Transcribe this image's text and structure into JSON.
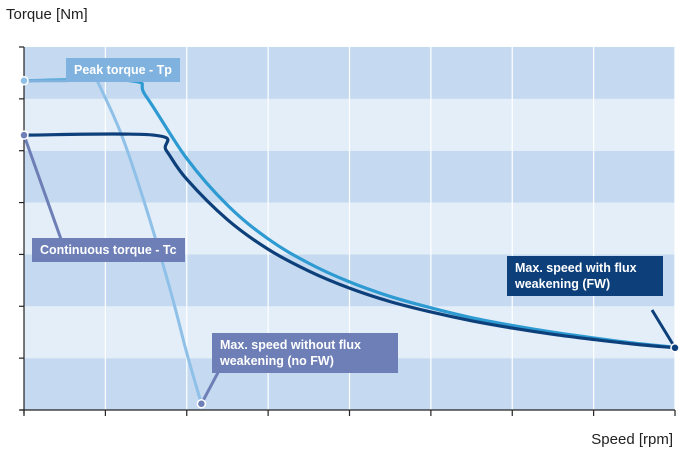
{
  "chart_data": {
    "type": "line",
    "title": "",
    "ylabel": "Torque [Nm]",
    "xlabel": "Speed [rpm]",
    "xlim": [
      0,
      8
    ],
    "ylim": [
      0,
      7
    ],
    "grid": "alternating horizontal bands, vertical gridlines",
    "series": [
      {
        "key": "peak",
        "color": "#2d9ad2",
        "x": [
          0,
          1.3,
          1.5,
          2,
          2.5,
          3,
          3.5,
          4,
          4.5,
          5,
          5.5,
          6,
          6.5,
          7,
          7.5,
          8
        ],
        "y": [
          6.35,
          6.35,
          6.05,
          4.85,
          3.95,
          3.3,
          2.83,
          2.47,
          2.19,
          1.97,
          1.78,
          1.63,
          1.5,
          1.39,
          1.29,
          1.21
        ]
      },
      {
        "key": "continuous",
        "color": "#0d3f7a",
        "x": [
          0,
          1.6,
          1.75,
          2,
          2.5,
          3,
          3.5,
          4,
          4.5,
          5,
          5.5,
          6,
          6.5,
          7,
          7.5,
          8
        ],
        "y": [
          5.3,
          5.3,
          5.0,
          4.45,
          3.67,
          3.1,
          2.68,
          2.35,
          2.09,
          1.89,
          1.72,
          1.58,
          1.46,
          1.36,
          1.27,
          1.2
        ]
      },
      {
        "key": "no_fw",
        "color": "#8fc0e8",
        "x": [
          0.9,
          1.2,
          1.5,
          1.8,
          2.0,
          2.18
        ],
        "y": [
          6.35,
          5.3,
          3.9,
          2.3,
          1.1,
          0.12
        ]
      }
    ],
    "markers": [
      {
        "name": "peak-torque-point",
        "x": 0,
        "y": 6.35,
        "fill": "#8fc0e8"
      },
      {
        "name": "continuous-torque-point",
        "x": 0,
        "y": 5.3,
        "fill": "#6d7fb6"
      },
      {
        "name": "max-speed-no-fw-point",
        "x": 2.18,
        "y": 0.12,
        "fill": "#6d7fb6"
      },
      {
        "name": "max-speed-fw-point",
        "x": 8,
        "y": 1.2,
        "fill": "#0d3f7a"
      }
    ],
    "annotations": {
      "peak": "Peak torque - Tp",
      "continuous": "Continuous torque - Tc",
      "no_fw": "Max. speed without flux weakening (no FW)",
      "fw": "Max. speed with flux weakening (FW)"
    },
    "colors": {
      "band_dark": "#c5daf0",
      "band_light": "#e3eef9",
      "axis": "#222222",
      "callout_peak": "#7fb2de",
      "callout_purple": "#6d7fb6",
      "callout_navy": "#0d3f7a"
    }
  }
}
